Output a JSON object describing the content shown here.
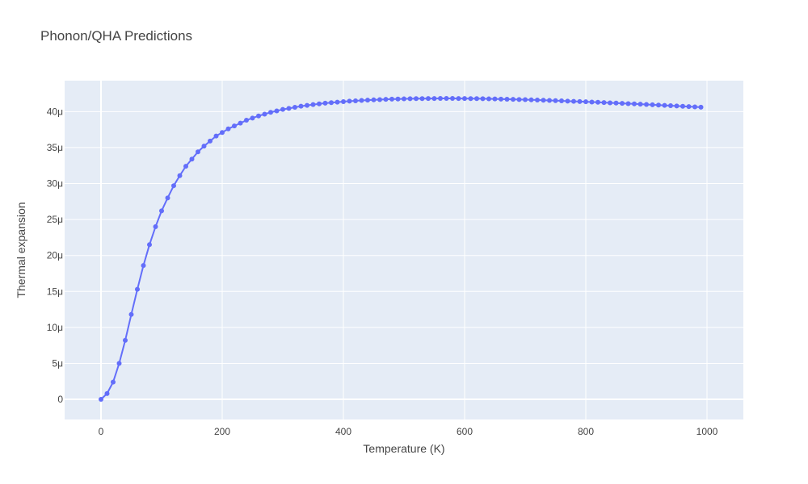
{
  "chart_data": {
    "type": "line",
    "title": "Phonon/QHA Predictions",
    "xlabel": "Temperature (K)",
    "ylabel": "Thermal expansion",
    "xlim": [
      -60,
      1060
    ],
    "ylim": [
      -2.8e-06,
      4.43e-05
    ],
    "xticks": [
      0,
      200,
      400,
      600,
      800,
      1000
    ],
    "xtick_labels": [
      "0",
      "200",
      "400",
      "600",
      "800",
      "1000"
    ],
    "yticks": [
      0,
      5e-06,
      1e-05,
      1.5e-05,
      2e-05,
      2.5e-05,
      3e-05,
      3.5e-05,
      4e-05
    ],
    "ytick_labels": [
      "0",
      "5μ",
      "10μ",
      "15μ",
      "20μ",
      "25μ",
      "30μ",
      "35μ",
      "40μ"
    ],
    "grid": true,
    "legend": false,
    "colors": {
      "series": "#636efa",
      "plot_bg": "#e5ecf6",
      "grid": "#ffffff",
      "text": "#444444"
    },
    "series": [
      {
        "mode": "lines+markers",
        "x": [
          0,
          10,
          20,
          30,
          40,
          50,
          60,
          70,
          80,
          90,
          100,
          110,
          120,
          130,
          140,
          150,
          160,
          170,
          180,
          190,
          200,
          210,
          220,
          230,
          240,
          250,
          260,
          270,
          280,
          290,
          300,
          310,
          320,
          330,
          340,
          350,
          360,
          370,
          380,
          390,
          400,
          410,
          420,
          430,
          440,
          450,
          460,
          470,
          480,
          490,
          500,
          510,
          520,
          530,
          540,
          550,
          560,
          570,
          580,
          590,
          600,
          610,
          620,
          630,
          640,
          650,
          660,
          670,
          680,
          690,
          700,
          710,
          720,
          730,
          740,
          750,
          760,
          770,
          780,
          790,
          800,
          810,
          820,
          830,
          840,
          850,
          860,
          870,
          880,
          890,
          900,
          910,
          920,
          930,
          940,
          950,
          960,
          970,
          980,
          990
        ],
        "y": [
          0,
          8e-07,
          2.4e-06,
          5e-06,
          8.2e-06,
          1.18e-05,
          1.53e-05,
          1.86e-05,
          2.15e-05,
          2.4e-05,
          2.62e-05,
          2.8e-05,
          2.97e-05,
          3.11e-05,
          3.24e-05,
          3.34e-05,
          3.44e-05,
          3.52e-05,
          3.59e-05,
          3.66e-05,
          3.71e-05,
          3.76e-05,
          3.8e-05,
          3.84e-05,
          3.88e-05,
          3.91e-05,
          3.94e-05,
          3.965e-05,
          3.99e-05,
          4.01e-05,
          4.03e-05,
          4.045e-05,
          4.06e-05,
          4.075e-05,
          4.087e-05,
          4.098e-05,
          4.108e-05,
          4.117e-05,
          4.125e-05,
          4.132e-05,
          4.139e-05,
          4.145e-05,
          4.15e-05,
          4.155e-05,
          4.159e-05,
          4.163e-05,
          4.167e-05,
          4.17e-05,
          4.173e-05,
          4.175e-05,
          4.177e-05,
          4.179e-05,
          4.18e-05,
          4.181e-05,
          4.182e-05,
          4.182e-05,
          4.183e-05,
          4.183e-05,
          4.183e-05,
          4.182e-05,
          4.182e-05,
          4.181e-05,
          4.18e-05,
          4.179e-05,
          4.177e-05,
          4.176e-05,
          4.174e-05,
          4.172e-05,
          4.17e-05,
          4.168e-05,
          4.166e-05,
          4.163e-05,
          4.161e-05,
          4.158e-05,
          4.155e-05,
          4.152e-05,
          4.149e-05,
          4.146e-05,
          4.143e-05,
          4.14e-05,
          4.137e-05,
          4.133e-05,
          4.13e-05,
          4.126e-05,
          4.122e-05,
          4.119e-05,
          4.115e-05,
          4.111e-05,
          4.107e-05,
          4.103e-05,
          4.099e-05,
          4.095e-05,
          4.091e-05,
          4.087e-05,
          4.083e-05,
          4.078e-05,
          4.074e-05,
          4.07e-05,
          4.065e-05,
          4.061e-05
        ]
      }
    ]
  }
}
